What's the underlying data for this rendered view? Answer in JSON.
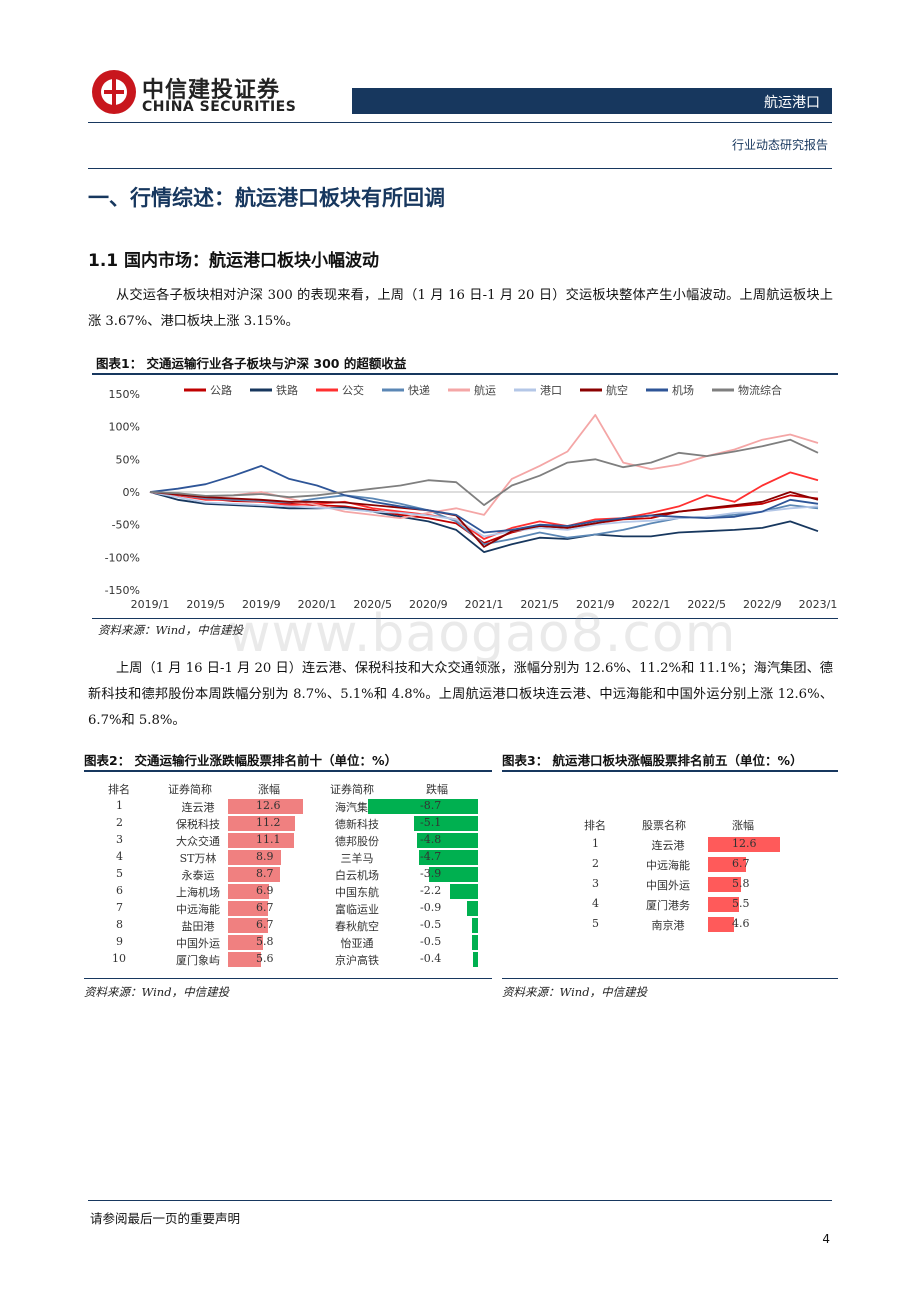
{
  "header": {
    "logo_cn": "中信建投证券",
    "logo_en": "CHINA SECURITIES",
    "sector": "航运港口",
    "report_type": "行业动态研究报告"
  },
  "section_title": "一、行情综述：航运港口板块有所回调",
  "subsection_title": "1.1 国内市场：航运港口板块小幅波动",
  "para1": "从交运各子板块相对沪深 300 的表现来看，上周（1 月 16 日-1 月 20 日）交运板块整体产生小幅波动。上周航运板块上涨 3.67%、港口板块上涨 3.15%。",
  "fig1": {
    "title": "图表1：  交通运输行业各子板块与沪深 300 的超额收益",
    "source": "资料来源：Wind，中信建投"
  },
  "para2": "上周（1 月 16 日-1 月 20 日）连云港、保税科技和大众交通领涨，涨幅分别为 12.6%、11.2%和 11.1%；海汽集团、德新科技和德邦股份本周跌幅分别为 8.7%、5.1%和 4.8%。上周航运港口板块连云港、中远海能和中国外运分别上涨 12.6%、6.7%和 5.8%。",
  "fig2": {
    "title": "图表2：  交通运输行业涨跌幅股票排名前十（单位：%）",
    "source": "资料来源：Wind，中信建投",
    "headers": {
      "rank": "排名",
      "name": "证券简称",
      "up": "涨幅",
      "name2": "证券简称",
      "down": "跌幅"
    }
  },
  "fig3": {
    "title": "图表3：  航运港口板块涨幅股票排名前五（单位：%）",
    "source": "资料来源：Wind，中信建投",
    "headers": {
      "rank": "排名",
      "name": "股票名称",
      "up": "涨幅"
    }
  },
  "footer": {
    "note": "请参阅最后一页的重要声明",
    "page": "4"
  },
  "watermark": "www.baogao8.com",
  "colors": {
    "navy": "#17375e",
    "red": "#c8161d",
    "up_bar": "#f08080",
    "down_bar": "#00b050",
    "top5_bar": "#ff5a5a"
  },
  "chart_data": [
    {
      "type": "line",
      "title": "",
      "x_ticks": [
        "2019/1",
        "2019/5",
        "2019/9",
        "2020/1",
        "2020/5",
        "2020/9",
        "2021/1",
        "2021/5",
        "2021/9",
        "2022/1",
        "2022/5",
        "2022/9",
        "2023/1"
      ],
      "y_ticks": [
        "150%",
        "100%",
        "50%",
        "0%",
        "-50%",
        "-100%",
        "-150%"
      ],
      "ylim": [
        -150,
        150
      ],
      "unit": "%",
      "legend_position": "top",
      "x": [
        "2019/1",
        "2019/3",
        "2019/5",
        "2019/7",
        "2019/9",
        "2019/11",
        "2020/1",
        "2020/3",
        "2020/5",
        "2020/7",
        "2020/9",
        "2020/11",
        "2021/1",
        "2021/3",
        "2021/5",
        "2021/7",
        "2021/9",
        "2021/11",
        "2022/1",
        "2022/3",
        "2022/5",
        "2022/7",
        "2022/9",
        "2022/11",
        "2023/1"
      ],
      "series": [
        {
          "name": "公路",
          "color": "#c00000",
          "values": [
            0,
            -5,
            -10,
            -14,
            -15,
            -18,
            -20,
            -22,
            -28,
            -35,
            -40,
            -48,
            -78,
            -62,
            -52,
            -55,
            -48,
            -42,
            -40,
            -30,
            -26,
            -22,
            -18,
            -5,
            -10
          ]
        },
        {
          "name": "铁路",
          "color": "#17375e",
          "values": [
            0,
            -12,
            -18,
            -20,
            -22,
            -25,
            -25,
            -24,
            -30,
            -38,
            -45,
            -58,
            -92,
            -80,
            -70,
            -72,
            -65,
            -68,
            -68,
            -62,
            -60,
            -58,
            -55,
            -45,
            -60
          ]
        },
        {
          "name": "公交",
          "color": "#ff3030",
          "values": [
            0,
            -5,
            -12,
            -12,
            -15,
            -20,
            -18,
            -15,
            -25,
            -30,
            -35,
            -42,
            -72,
            -55,
            -45,
            -52,
            -42,
            -40,
            -32,
            -22,
            -5,
            -15,
            10,
            30,
            18
          ]
        },
        {
          "name": "快递",
          "color": "#5b87b5",
          "values": [
            0,
            -4,
            -10,
            -12,
            -14,
            -16,
            -10,
            -5,
            -10,
            -18,
            -28,
            -45,
            -80,
            -72,
            -62,
            -70,
            -65,
            -58,
            -48,
            -40,
            -38,
            -35,
            -30,
            -20,
            -25
          ]
        },
        {
          "name": "航运",
          "color": "#f4a6a6",
          "values": [
            0,
            -4,
            -8,
            -5,
            0,
            -10,
            -20,
            -30,
            -35,
            -40,
            -32,
            -25,
            -35,
            20,
            40,
            62,
            118,
            45,
            35,
            42,
            55,
            65,
            80,
            88,
            75
          ]
        },
        {
          "name": "港口",
          "color": "#b4c7e7",
          "values": [
            0,
            -8,
            -16,
            -18,
            -20,
            -22,
            -24,
            -26,
            -30,
            -32,
            -36,
            -42,
            -68,
            -60,
            -55,
            -58,
            -50,
            -46,
            -44,
            -40,
            -38,
            -32,
            -30,
            -25,
            -22
          ]
        },
        {
          "name": "航空",
          "color": "#8b0000",
          "values": [
            0,
            -4,
            -8,
            -10,
            -12,
            -15,
            -15,
            -16,
            -20,
            -24,
            -28,
            -36,
            -84,
            -60,
            -52,
            -55,
            -48,
            -40,
            -36,
            -30,
            -25,
            -20,
            -15,
            0,
            -12
          ]
        },
        {
          "name": "机场",
          "color": "#2e5597",
          "values": [
            0,
            5,
            12,
            25,
            40,
            20,
            10,
            -5,
            -15,
            -22,
            -28,
            -35,
            -62,
            -58,
            -50,
            -52,
            -45,
            -40,
            -36,
            -38,
            -40,
            -38,
            -30,
            -12,
            -18
          ]
        },
        {
          "name": "物流综合",
          "color": "#7f7f7f",
          "values": [
            0,
            -2,
            -6,
            -5,
            -3,
            -8,
            -5,
            0,
            5,
            10,
            18,
            15,
            -20,
            10,
            25,
            45,
            50,
            38,
            45,
            60,
            55,
            62,
            70,
            80,
            60
          ]
        }
      ]
    },
    {
      "type": "bar",
      "title": "",
      "ranks": [
        "1",
        "2",
        "3",
        "4",
        "5",
        "6",
        "7",
        "8",
        "9",
        "10"
      ],
      "gainers": [
        {
          "name": "连云港",
          "value": "12.6"
        },
        {
          "name": "保税科技",
          "value": "11.2"
        },
        {
          "name": "大众交通",
          "value": "11.1"
        },
        {
          "name": "ST万林",
          "value": "8.9"
        },
        {
          "name": "永泰运",
          "value": "8.7"
        },
        {
          "name": "上海机场",
          "value": "6.9"
        },
        {
          "name": "中远海能",
          "value": "6.7"
        },
        {
          "name": "盐田港",
          "value": "6.7"
        },
        {
          "name": "中国外运",
          "value": "5.8"
        },
        {
          "name": "厦门象屿",
          "value": "5.6"
        }
      ],
      "losers": [
        {
          "name": "海汽集团",
          "value": "-8.7"
        },
        {
          "name": "德新科技",
          "value": "-5.1"
        },
        {
          "name": "德邦股份",
          "value": "-4.8"
        },
        {
          "name": "三羊马",
          "value": "-4.7"
        },
        {
          "name": "白云机场",
          "value": "-3.9"
        },
        {
          "name": "中国东航",
          "value": "-2.2"
        },
        {
          "name": "富临运业",
          "value": "-0.9"
        },
        {
          "name": "春秋航空",
          "value": "-0.5"
        },
        {
          "name": "怡亚通",
          "value": "-0.5"
        },
        {
          "name": "京沪高铁",
          "value": "-0.4"
        }
      ]
    },
    {
      "type": "bar",
      "title": "",
      "rows": [
        {
          "rank": "1",
          "name": "连云港",
          "value": "12.6"
        },
        {
          "rank": "2",
          "name": "中远海能",
          "value": "6.7"
        },
        {
          "rank": "3",
          "name": "中国外运",
          "value": "5.8"
        },
        {
          "rank": "4",
          "name": "厦门港务",
          "value": "5.5"
        },
        {
          "rank": "5",
          "name": "南京港",
          "value": "4.6"
        }
      ]
    }
  ]
}
